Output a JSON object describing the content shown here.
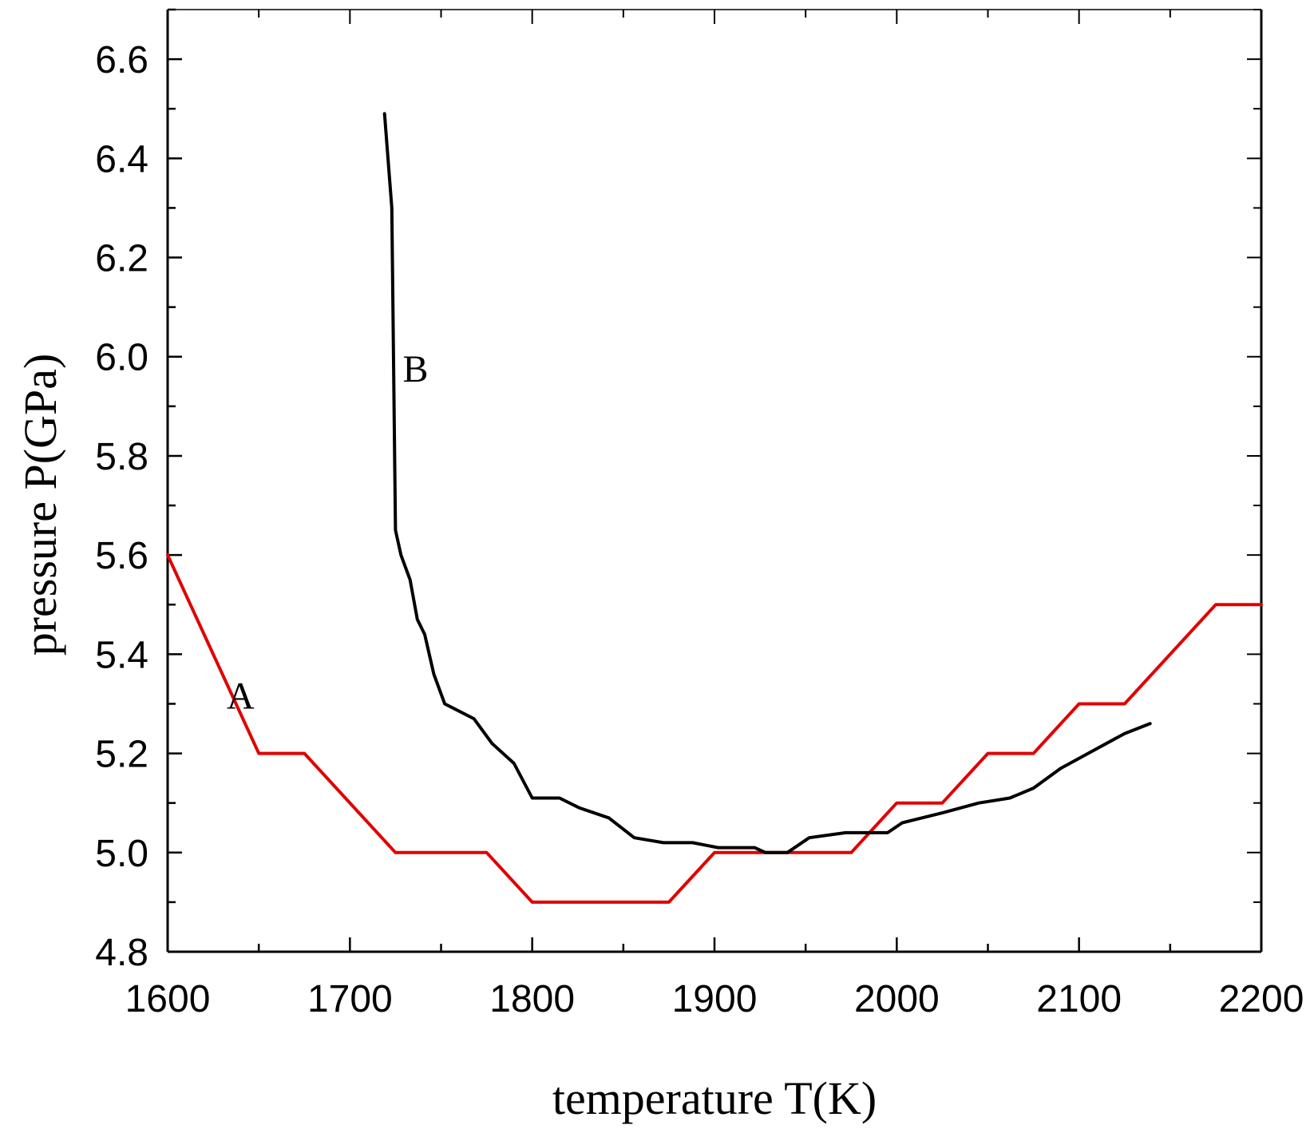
{
  "chart_data": {
    "type": "line",
    "title": "",
    "xlabel": "temperature T(K)",
    "ylabel": "pressure P(GPa)",
    "xlim": [
      1600,
      2200
    ],
    "ylim": [
      4.8,
      6.7
    ],
    "xticks": [
      1600,
      1700,
      1800,
      1900,
      2000,
      2100,
      2200
    ],
    "xtick_labels": [
      "1600",
      "1700",
      "1800",
      "1900",
      "2000",
      "2100",
      "2200"
    ],
    "yticks": [
      4.8,
      5.0,
      5.2,
      5.4,
      5.6,
      5.8,
      6.0,
      6.2,
      6.4,
      6.6
    ],
    "ytick_labels": [
      "4.8",
      "5.0",
      "5.2",
      "5.4",
      "5.6",
      "5.8",
      "6.0",
      "6.2",
      "6.4",
      "6.6"
    ],
    "grid": false,
    "series": [
      {
        "name": "A",
        "color": "#e00000",
        "label_at": [
          1640,
          5.29
        ],
        "points": [
          [
            1600,
            5.6
          ],
          [
            1650,
            5.2
          ],
          [
            1675,
            5.2
          ],
          [
            1725,
            5.0
          ],
          [
            1775,
            5.0
          ],
          [
            1800,
            4.9
          ],
          [
            1875,
            4.9
          ],
          [
            1900,
            5.0
          ],
          [
            1975,
            5.0
          ],
          [
            2000,
            5.1
          ],
          [
            2025,
            5.1
          ],
          [
            2050,
            5.2
          ],
          [
            2075,
            5.2
          ],
          [
            2100,
            5.3
          ],
          [
            2125,
            5.3
          ],
          [
            2175,
            5.5
          ],
          [
            2200,
            5.5
          ]
        ]
      },
      {
        "name": "B",
        "color": "#000000",
        "label_at": [
          1736,
          5.95
        ],
        "points": [
          [
            1719,
            6.49
          ],
          [
            1723,
            6.3
          ],
          [
            1725,
            5.65
          ],
          [
            1728,
            5.6
          ],
          [
            1733,
            5.55
          ],
          [
            1737,
            5.47
          ],
          [
            1741,
            5.44
          ],
          [
            1746,
            5.36
          ],
          [
            1752,
            5.3
          ],
          [
            1768,
            5.27
          ],
          [
            1778,
            5.22
          ],
          [
            1790,
            5.18
          ],
          [
            1800,
            5.11
          ],
          [
            1815,
            5.11
          ],
          [
            1826,
            5.09
          ],
          [
            1842,
            5.07
          ],
          [
            1856,
            5.03
          ],
          [
            1872,
            5.02
          ],
          [
            1888,
            5.02
          ],
          [
            1902,
            5.01
          ],
          [
            1922,
            5.01
          ],
          [
            1928,
            5.0
          ],
          [
            1940,
            5.0
          ],
          [
            1952,
            5.03
          ],
          [
            1972,
            5.04
          ],
          [
            1995,
            5.04
          ],
          [
            2003,
            5.06
          ],
          [
            2025,
            5.08
          ],
          [
            2045,
            5.1
          ],
          [
            2062,
            5.11
          ],
          [
            2075,
            5.13
          ],
          [
            2090,
            5.17
          ],
          [
            2110,
            5.21
          ],
          [
            2125,
            5.24
          ],
          [
            2139,
            5.26
          ]
        ]
      }
    ]
  }
}
